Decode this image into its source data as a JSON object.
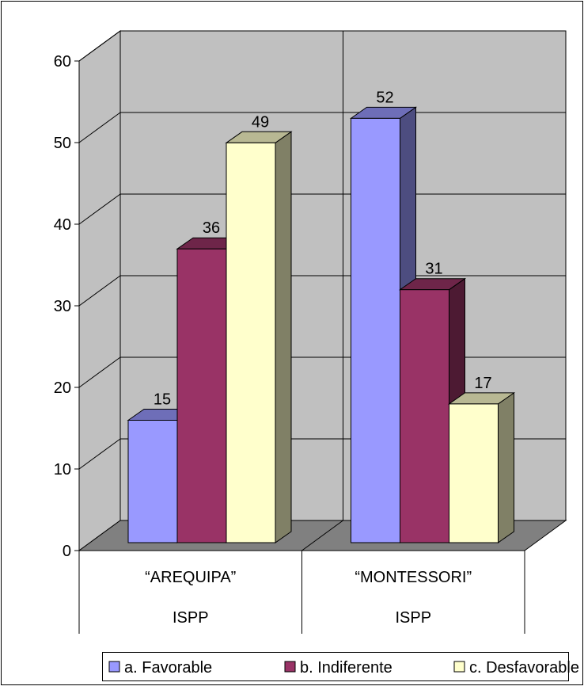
{
  "chart_data": {
    "type": "bar",
    "title": "",
    "xlabel": "",
    "ylabel": "",
    "ylim": [
      0,
      60
    ],
    "yticks": [
      0,
      10,
      20,
      30,
      40,
      50,
      60
    ],
    "grid": true,
    "legend_position": "bottom",
    "categories": [
      {
        "line1": "“AREQUIPA”",
        "line2": "ISPP"
      },
      {
        "line1": "“MONTESSORI”",
        "line2": "ISPP"
      }
    ],
    "series": [
      {
        "name": "a. Favorable",
        "values": [
          15,
          52
        ],
        "color": "#9999ff"
      },
      {
        "name": "b. Indiferente",
        "values": [
          36,
          31
        ],
        "color": "#993366"
      },
      {
        "name": "c. Desfavorable",
        "values": [
          49,
          17
        ],
        "color": "#ffffcc"
      }
    ]
  }
}
